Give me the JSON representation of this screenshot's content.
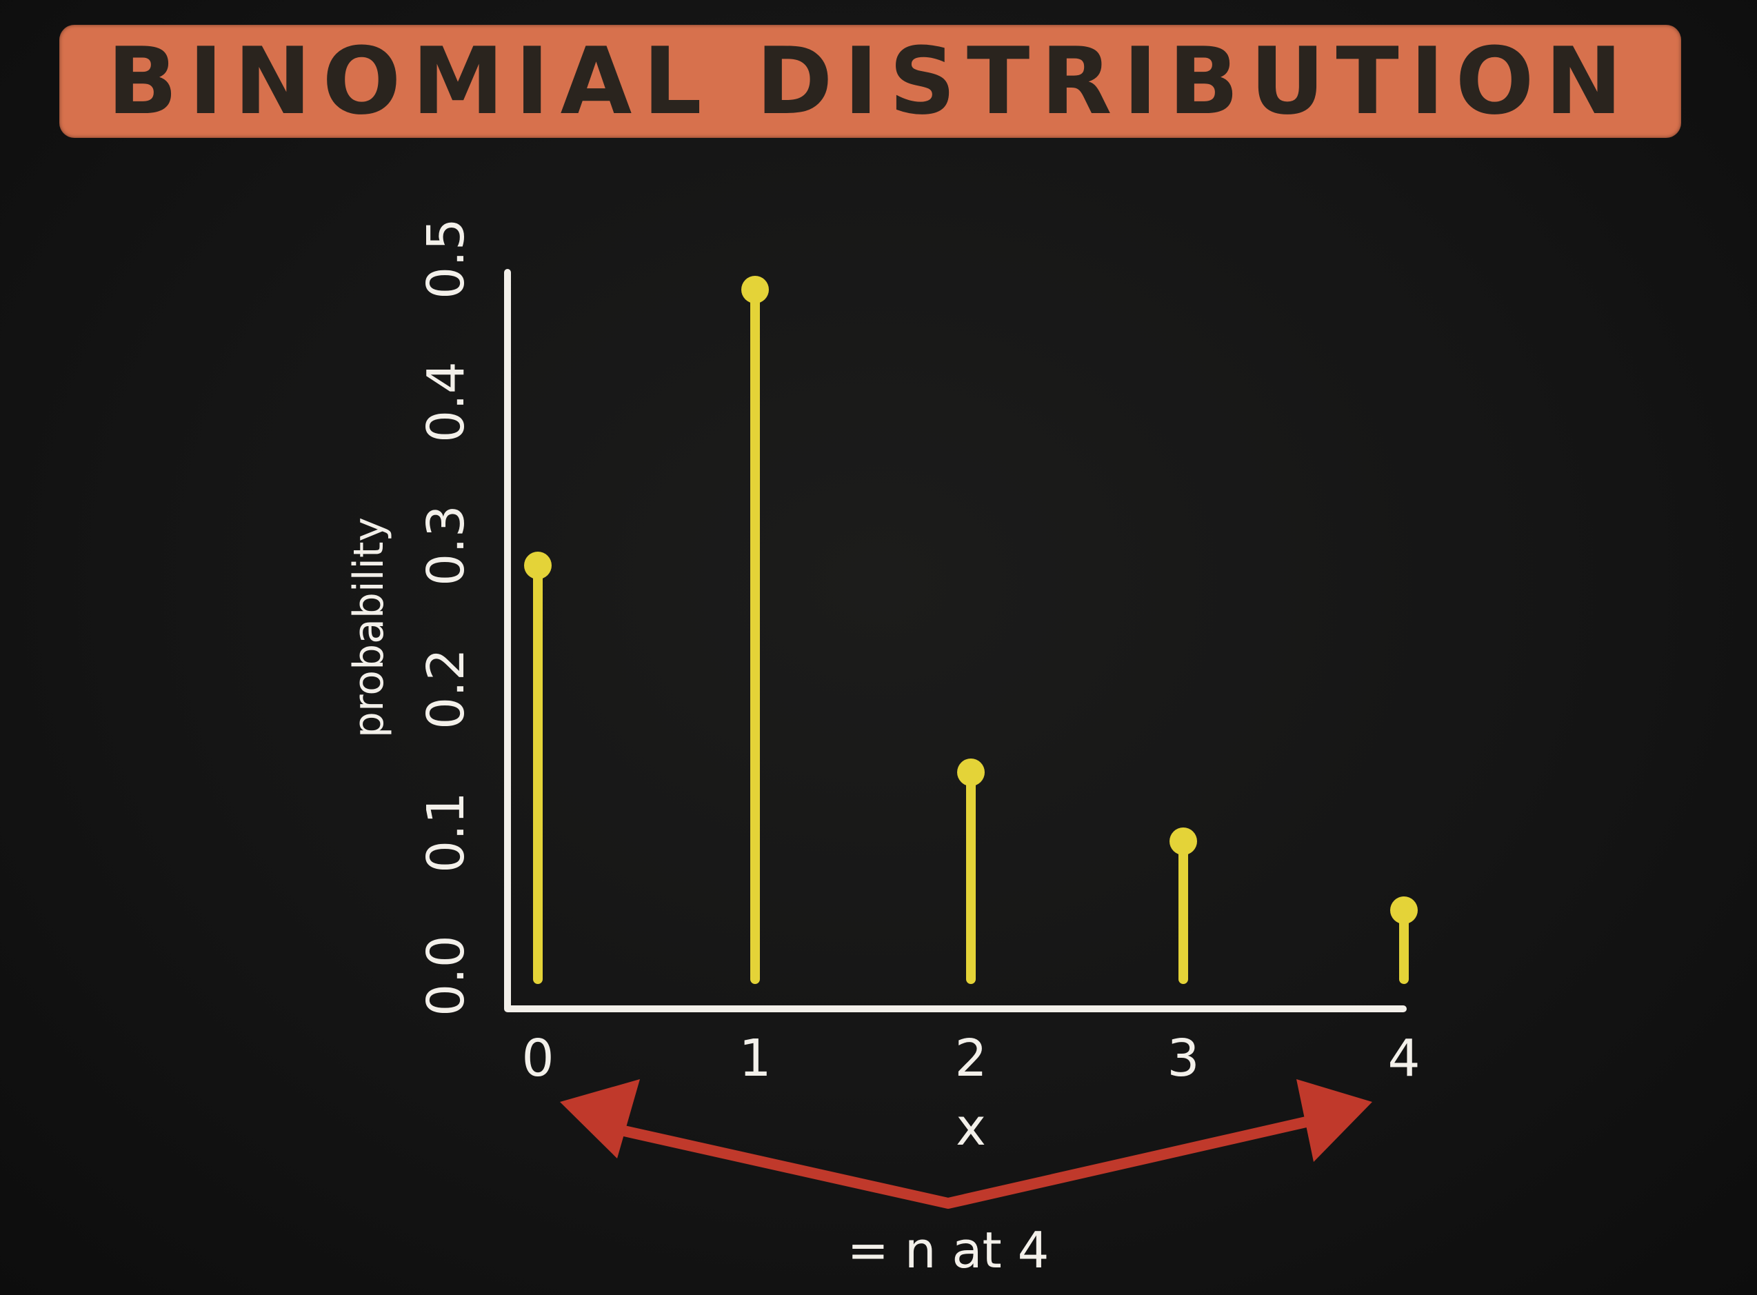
{
  "title": "BINOMIAL DISTRIBUTION",
  "chart_data": {
    "type": "bar",
    "style": "stem",
    "x": [
      0,
      1,
      2,
      3,
      4
    ],
    "values": [
      0.3,
      0.5,
      0.15,
      0.1,
      0.05
    ],
    "xlabel": "x",
    "ylabel": "probability",
    "yticks": [
      "0.0",
      "0.1",
      "0.2",
      "0.3",
      "0.4",
      "0.5"
    ],
    "xticks": [
      "0",
      "1",
      "2",
      "3",
      "4"
    ],
    "ylim": [
      0,
      0.5
    ],
    "grid": false,
    "colors": {
      "stem": "#e4d338",
      "axis": "#f3f0ea",
      "arrow": "#c0392b",
      "banner": "#d7714d"
    },
    "annotation": "= n at 4"
  }
}
